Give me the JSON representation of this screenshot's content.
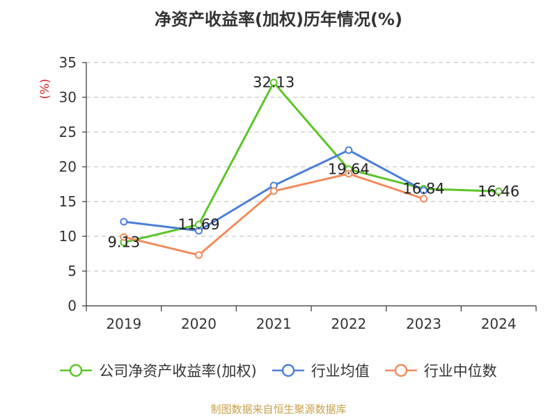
{
  "chart_data": {
    "type": "line",
    "title": "净资产收益率(加权)历年情况(%)",
    "ylabel": "(%)",
    "xlabel": "",
    "categories": [
      "2019",
      "2020",
      "2021",
      "2022",
      "2023",
      "2024"
    ],
    "ylim": [
      0,
      35
    ],
    "yticks": [
      0,
      5,
      10,
      15,
      20,
      25,
      30,
      35
    ],
    "grid": true,
    "legend_position": "bottom",
    "series": [
      {
        "name": "公司净资产收益率(加权)",
        "color": "#5cc527",
        "values": [
          9.13,
          11.69,
          32.13,
          19.64,
          16.84,
          16.46
        ],
        "labels": [
          "9.13",
          "11.69",
          "32.13",
          "19.64",
          "16.84",
          "16.46"
        ]
      },
      {
        "name": "行业均值",
        "color": "#4b7fd8",
        "values": [
          12.1,
          10.8,
          17.3,
          22.4,
          16.6,
          null
        ]
      },
      {
        "name": "行业中位数",
        "color": "#f28a5a",
        "values": [
          9.9,
          7.3,
          16.5,
          19.0,
          15.4,
          null
        ]
      }
    ]
  },
  "source": "制图数据来自恒生聚源数据库"
}
